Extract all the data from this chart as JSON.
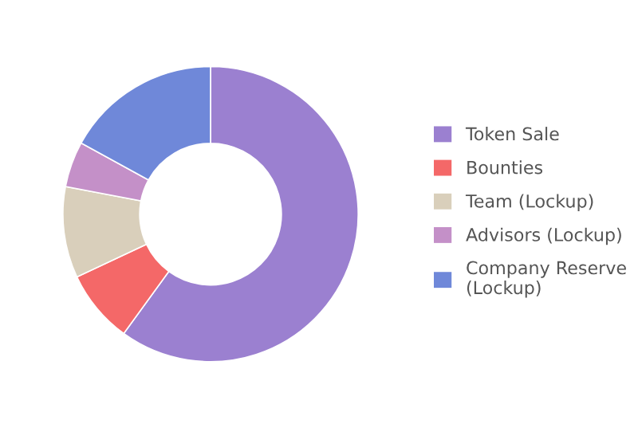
{
  "chart_data": {
    "type": "donut",
    "categories": [
      "Token Sale",
      "Bounties",
      "Team (Lockup)",
      "Advisors (Lockup)",
      "Company Reserve (Lockup)"
    ],
    "values": [
      60,
      8,
      10,
      5,
      17
    ],
    "colors": [
      "#9b80d0",
      "#f46868",
      "#d9cfbb",
      "#c490c8",
      "#6f88d9"
    ],
    "legend": "right"
  }
}
